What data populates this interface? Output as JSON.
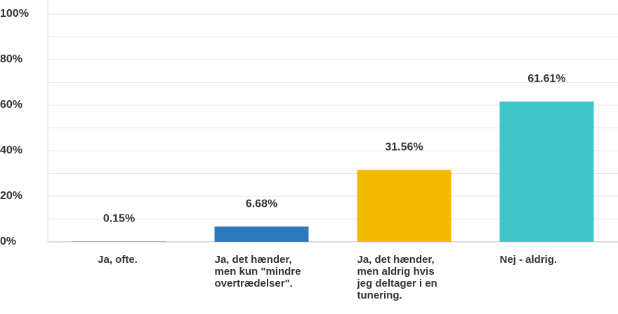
{
  "chart_data": {
    "type": "bar",
    "categories": [
      "Ja, ofte.",
      "Ja, det hænder, men kun \"mindre overtrædelser\".",
      "Ja, det hænder, men aldrig hvis jeg deltager i en tunering.",
      "Nej - aldrig."
    ],
    "values": [
      0.15,
      6.68,
      31.56,
      61.61
    ],
    "value_labels": [
      "0.15%",
      "6.68%",
      "31.56%",
      "61.61%"
    ],
    "colors": [
      "#7b4fa3",
      "#2e78bd",
      "#f5bb00",
      "#40c6c9"
    ],
    "ylim": [
      0,
      100
    ],
    "yticks": [
      {
        "value": 0,
        "label": "0%"
      },
      {
        "value": 20,
        "label": "20%"
      },
      {
        "value": 40,
        "label": "40%"
      },
      {
        "value": 60,
        "label": "60%"
      },
      {
        "value": 80,
        "label": "80%"
      },
      {
        "value": 100,
        "label": "100%"
      }
    ],
    "minor_yticks": [
      10,
      30,
      50,
      70,
      90
    ],
    "grid": true
  }
}
